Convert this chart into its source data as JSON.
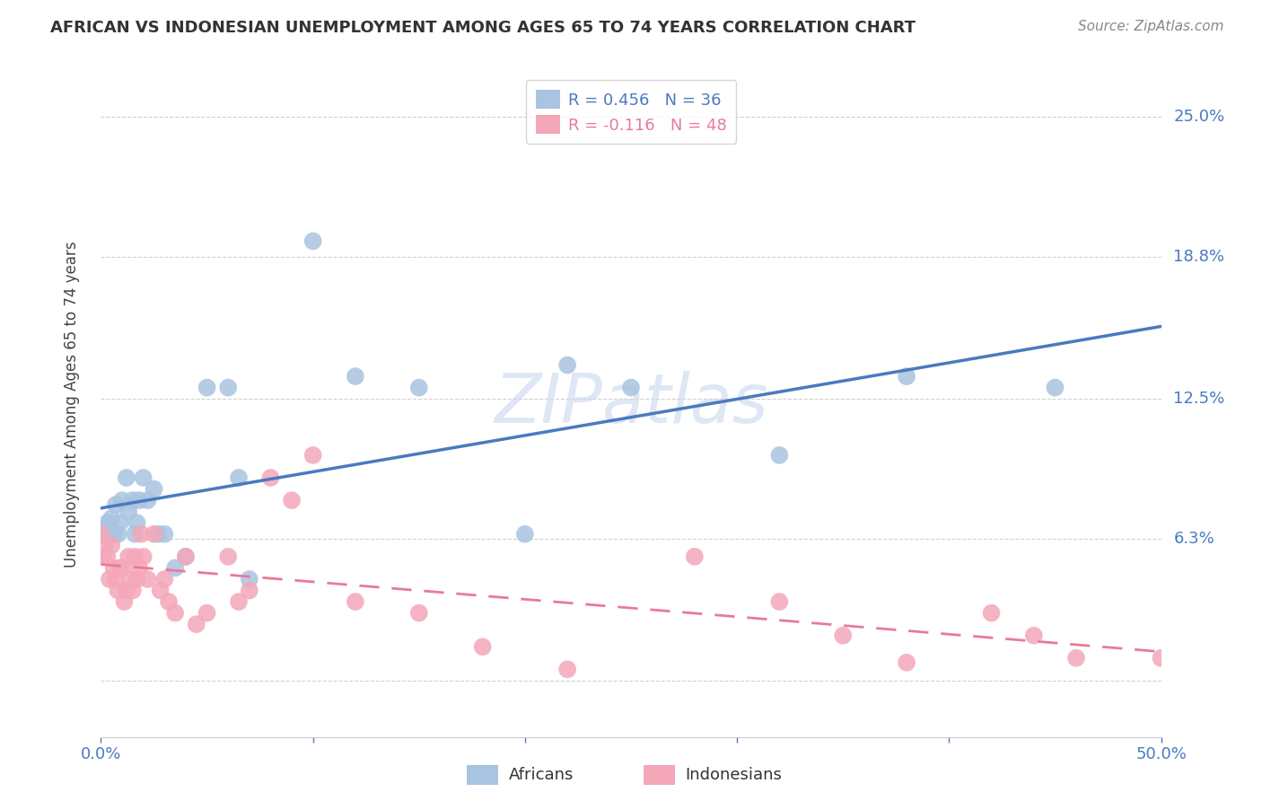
{
  "title": "AFRICAN VS INDONESIAN UNEMPLOYMENT AMONG AGES 65 TO 74 YEARS CORRELATION CHART",
  "source": "Source: ZipAtlas.com",
  "ylabel": "Unemployment Among Ages 65 to 74 years",
  "xlim": [
    0.0,
    0.5
  ],
  "ylim": [
    -0.025,
    0.27
  ],
  "yticks": [
    0.0,
    0.063,
    0.125,
    0.188,
    0.25
  ],
  "ytick_labels": [
    "",
    "6.3%",
    "12.5%",
    "18.8%",
    "25.0%"
  ],
  "xticks": [
    0.0,
    0.1,
    0.2,
    0.3,
    0.4,
    0.5
  ],
  "xtick_labels": [
    "0.0%",
    "",
    "",
    "",
    "",
    "50.0%"
  ],
  "african_R": 0.456,
  "african_N": 36,
  "indonesian_R": -0.116,
  "indonesian_N": 48,
  "african_color": "#a8c4e0",
  "indonesian_color": "#f4a7b9",
  "african_line_color": "#4a7abf",
  "indonesian_line_color": "#e87a9a",
  "background_color": "#ffffff",
  "grid_color": "#cccccc",
  "african_x": [
    0.001,
    0.002,
    0.003,
    0.004,
    0.005,
    0.006,
    0.007,
    0.008,
    0.009,
    0.01,
    0.012,
    0.013,
    0.015,
    0.016,
    0.017,
    0.018,
    0.02,
    0.022,
    0.025,
    0.027,
    0.03,
    0.035,
    0.04,
    0.05,
    0.06,
    0.065,
    0.07,
    0.1,
    0.12,
    0.15,
    0.2,
    0.22,
    0.25,
    0.32,
    0.38,
    0.45
  ],
  "african_y": [
    0.065,
    0.068,
    0.07,
    0.065,
    0.072,
    0.065,
    0.078,
    0.065,
    0.07,
    0.08,
    0.09,
    0.075,
    0.08,
    0.065,
    0.07,
    0.08,
    0.09,
    0.08,
    0.085,
    0.065,
    0.065,
    0.05,
    0.055,
    0.13,
    0.13,
    0.09,
    0.045,
    0.195,
    0.135,
    0.13,
    0.065,
    0.14,
    0.13,
    0.1,
    0.135,
    0.13
  ],
  "indonesian_x": [
    0.0,
    0.001,
    0.002,
    0.003,
    0.004,
    0.005,
    0.006,
    0.007,
    0.008,
    0.009,
    0.01,
    0.011,
    0.012,
    0.013,
    0.014,
    0.015,
    0.016,
    0.017,
    0.018,
    0.019,
    0.02,
    0.022,
    0.025,
    0.028,
    0.03,
    0.032,
    0.035,
    0.04,
    0.045,
    0.05,
    0.06,
    0.065,
    0.07,
    0.08,
    0.09,
    0.1,
    0.12,
    0.15,
    0.18,
    0.22,
    0.28,
    0.32,
    0.35,
    0.38,
    0.42,
    0.44,
    0.46,
    0.5
  ],
  "indonesian_y": [
    0.065,
    0.055,
    0.06,
    0.055,
    0.045,
    0.06,
    0.05,
    0.045,
    0.04,
    0.05,
    0.05,
    0.035,
    0.04,
    0.055,
    0.045,
    0.04,
    0.055,
    0.045,
    0.05,
    0.065,
    0.055,
    0.045,
    0.065,
    0.04,
    0.045,
    0.035,
    0.03,
    0.055,
    0.025,
    0.03,
    0.055,
    0.035,
    0.04,
    0.09,
    0.08,
    0.1,
    0.035,
    0.03,
    0.015,
    0.005,
    0.055,
    0.035,
    0.02,
    0.008,
    0.03,
    0.02,
    0.01,
    0.01
  ],
  "title_fontsize": 13,
  "source_fontsize": 11,
  "axis_label_fontsize": 12,
  "tick_fontsize": 13,
  "legend_fontsize": 13
}
